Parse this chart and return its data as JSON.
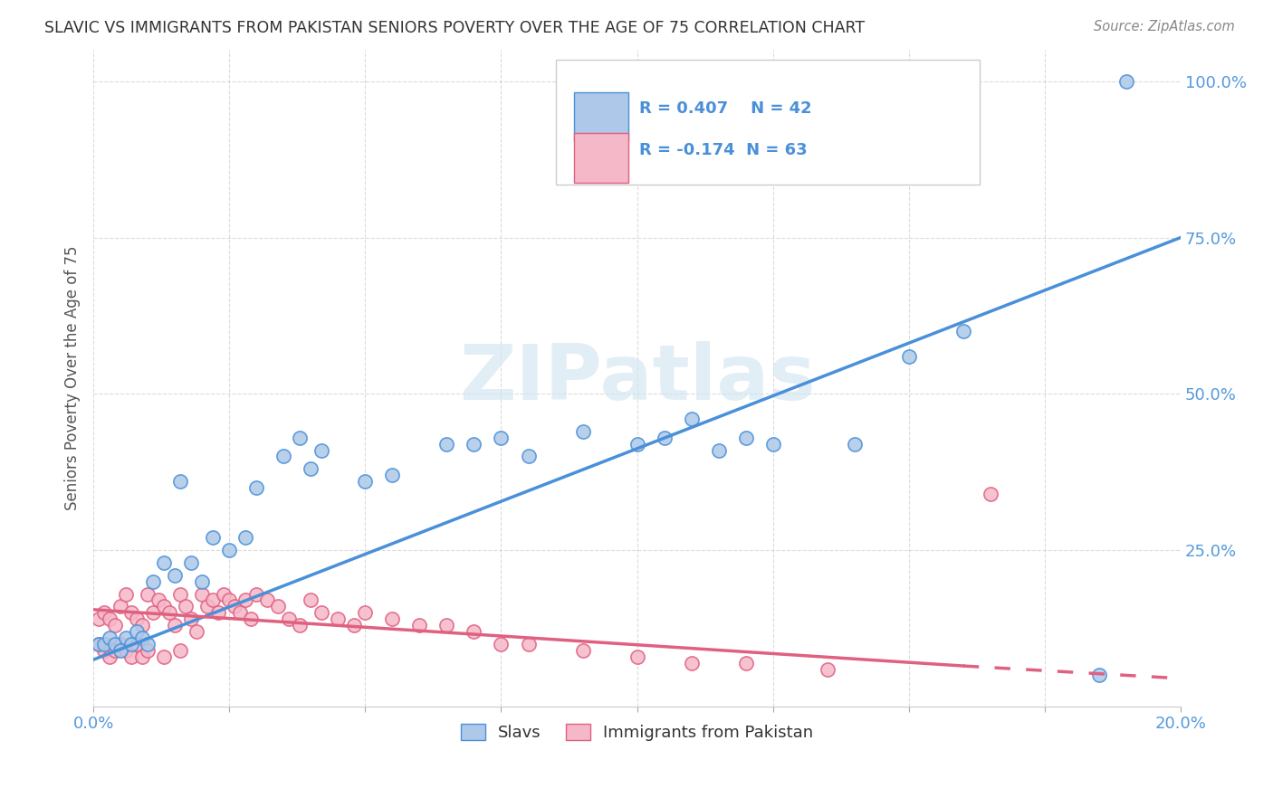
{
  "title": "SLAVIC VS IMMIGRANTS FROM PAKISTAN SENIORS POVERTY OVER THE AGE OF 75 CORRELATION CHART",
  "source": "Source: ZipAtlas.com",
  "ylabel": "Seniors Poverty Over the Age of 75",
  "legend_slavs_label": "Slavs",
  "legend_pak_label": "Immigrants from Pakistan",
  "R_slavs": 0.407,
  "N_slavs": 42,
  "R_pak": -0.174,
  "N_pak": 63,
  "slavs_color": "#adc8e8",
  "pak_color": "#f5b8c8",
  "line_slavs_color": "#4a90d9",
  "line_pak_color": "#e06080",
  "background_color": "#ffffff",
  "grid_color": "#cccccc",
  "title_color": "#333333",
  "axis_tick_color": "#5599dd",
  "watermark": "ZIPatlas",
  "xmin": 0.0,
  "xmax": 0.2,
  "ymin": 0.0,
  "ymax": 1.05,
  "slavs_line_x0": 0.0,
  "slavs_line_y0": 0.075,
  "slavs_line_x1": 0.2,
  "slavs_line_y1": 0.75,
  "pak_line_x0": 0.0,
  "pak_line_y0": 0.155,
  "pak_line_solid_x1": 0.16,
  "pak_line_solid_y1": 0.065,
  "pak_line_dash_x1": 0.2,
  "pak_line_dash_y1": 0.045,
  "slavs_x": [
    0.001,
    0.002,
    0.003,
    0.004,
    0.005,
    0.006,
    0.007,
    0.008,
    0.009,
    0.01,
    0.011,
    0.013,
    0.015,
    0.016,
    0.018,
    0.02,
    0.022,
    0.025,
    0.028,
    0.03,
    0.035,
    0.038,
    0.04,
    0.042,
    0.05,
    0.055,
    0.065,
    0.07,
    0.075,
    0.08,
    0.09,
    0.1,
    0.105,
    0.11,
    0.115,
    0.12,
    0.125,
    0.14,
    0.15,
    0.16,
    0.185,
    0.19
  ],
  "slavs_y": [
    0.1,
    0.1,
    0.11,
    0.1,
    0.09,
    0.11,
    0.1,
    0.12,
    0.11,
    0.1,
    0.2,
    0.23,
    0.21,
    0.36,
    0.23,
    0.2,
    0.27,
    0.25,
    0.27,
    0.35,
    0.4,
    0.43,
    0.38,
    0.41,
    0.36,
    0.37,
    0.42,
    0.42,
    0.43,
    0.4,
    0.44,
    0.42,
    0.43,
    0.46,
    0.41,
    0.43,
    0.42,
    0.42,
    0.56,
    0.6,
    0.05,
    1.0
  ],
  "pak_x": [
    0.001,
    0.001,
    0.002,
    0.002,
    0.003,
    0.003,
    0.004,
    0.004,
    0.005,
    0.005,
    0.006,
    0.006,
    0.007,
    0.007,
    0.008,
    0.008,
    0.009,
    0.009,
    0.01,
    0.01,
    0.011,
    0.012,
    0.013,
    0.013,
    0.014,
    0.015,
    0.016,
    0.016,
    0.017,
    0.018,
    0.019,
    0.02,
    0.021,
    0.022,
    0.023,
    0.024,
    0.025,
    0.026,
    0.027,
    0.028,
    0.029,
    0.03,
    0.032,
    0.034,
    0.036,
    0.038,
    0.04,
    0.042,
    0.045,
    0.048,
    0.05,
    0.055,
    0.06,
    0.065,
    0.07,
    0.075,
    0.08,
    0.09,
    0.1,
    0.11,
    0.12,
    0.135,
    0.165
  ],
  "pak_y": [
    0.14,
    0.1,
    0.15,
    0.09,
    0.14,
    0.08,
    0.13,
    0.09,
    0.16,
    0.1,
    0.18,
    0.09,
    0.15,
    0.08,
    0.14,
    0.1,
    0.13,
    0.08,
    0.18,
    0.09,
    0.15,
    0.17,
    0.16,
    0.08,
    0.15,
    0.13,
    0.18,
    0.09,
    0.16,
    0.14,
    0.12,
    0.18,
    0.16,
    0.17,
    0.15,
    0.18,
    0.17,
    0.16,
    0.15,
    0.17,
    0.14,
    0.18,
    0.17,
    0.16,
    0.14,
    0.13,
    0.17,
    0.15,
    0.14,
    0.13,
    0.15,
    0.14,
    0.13,
    0.13,
    0.12,
    0.1,
    0.1,
    0.09,
    0.08,
    0.07,
    0.07,
    0.06,
    0.34
  ]
}
